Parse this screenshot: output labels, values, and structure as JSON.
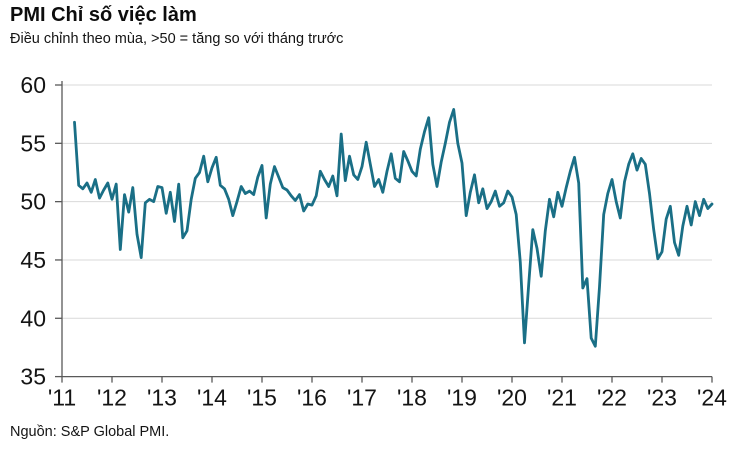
{
  "chart": {
    "title": "PMI Chỉ số việc làm",
    "subtitle": "Điều chỉnh theo mùa, >50 = tăng so với tháng trước",
    "source": "Nguồn: S&P Global PMI."
  },
  "chart_data": {
    "type": "line",
    "title": "PMI Chỉ số việc làm",
    "subtitle": "Điều chỉnh theo mùa, >50 = tăng so với tháng trước",
    "source": "Nguồn: S&P Global PMI.",
    "xlabel": "",
    "ylabel": "",
    "grid": true,
    "legend": "none",
    "background_color": "#ffffff",
    "gridline_color": "#d9d9d9",
    "axis_color": "#595959",
    "tick_label_color": "#141414",
    "y_axis": {
      "min": 35,
      "max": 60,
      "ticks": [
        60,
        55,
        50,
        45,
        40,
        35
      ],
      "tick_labels": [
        "60",
        "55",
        "50",
        "45",
        "40",
        "35"
      ]
    },
    "x_axis": {
      "start_year": 2011,
      "end_year": 2024,
      "tick_labels": [
        "'11",
        "'12",
        "'13",
        "'14",
        "'15",
        "'16",
        "'17",
        "'18",
        "'19",
        "'20",
        "'21",
        "'22",
        "'23",
        "'24"
      ]
    },
    "series": [
      {
        "name": "PMI Chỉ số việc làm",
        "color": "#1a6f86",
        "frequency": "monthly",
        "start_month": "2011-04",
        "end_month": "2024-01",
        "values": [
          56.8,
          51.4,
          51.1,
          51.6,
          50.8,
          51.9,
          50.3,
          51.0,
          51.6,
          50.2,
          51.5,
          45.9,
          50.6,
          49.1,
          51.2,
          47.2,
          45.2,
          49.9,
          50.2,
          50.0,
          51.3,
          51.2,
          49.0,
          50.8,
          48.3,
          51.5,
          46.9,
          47.5,
          50.2,
          52.0,
          52.5,
          53.9,
          51.7,
          52.9,
          53.8,
          51.4,
          51.1,
          50.2,
          48.8,
          50.0,
          51.3,
          50.7,
          50.9,
          50.6,
          52.1,
          53.1,
          48.6,
          51.5,
          53.0,
          52.1,
          51.2,
          51.0,
          50.5,
          50.1,
          50.6,
          49.2,
          49.8,
          49.7,
          50.5,
          52.6,
          51.9,
          51.3,
          52.2,
          50.5,
          55.8,
          51.8,
          53.9,
          52.3,
          51.9,
          53.0,
          55.1,
          53.2,
          51.3,
          51.9,
          50.8,
          52.6,
          54.1,
          52.0,
          51.7,
          54.3,
          53.5,
          52.6,
          52.2,
          54.5,
          56.0,
          57.2,
          53.2,
          51.3,
          53.4,
          55.0,
          56.8,
          57.9,
          55.0,
          53.3,
          48.8,
          50.8,
          52.3,
          49.9,
          51.1,
          49.4,
          50.0,
          50.9,
          49.6,
          49.9,
          50.9,
          50.4,
          48.9,
          44.8,
          37.9,
          42.9,
          47.6,
          46.0,
          43.6,
          47.5,
          50.2,
          48.7,
          50.8,
          49.6,
          51.2,
          52.6,
          53.8,
          51.6,
          42.6,
          43.4,
          38.3,
          37.6,
          42.7,
          48.9,
          50.7,
          51.9,
          50.0,
          48.6,
          51.7,
          53.2,
          54.1,
          52.7,
          53.7,
          53.2,
          50.7,
          47.6,
          45.1,
          45.7,
          48.5,
          49.6,
          46.5,
          45.4,
          47.9,
          49.6,
          48.0,
          50.0,
          48.8,
          50.2,
          49.4,
          49.8
        ]
      }
    ]
  }
}
